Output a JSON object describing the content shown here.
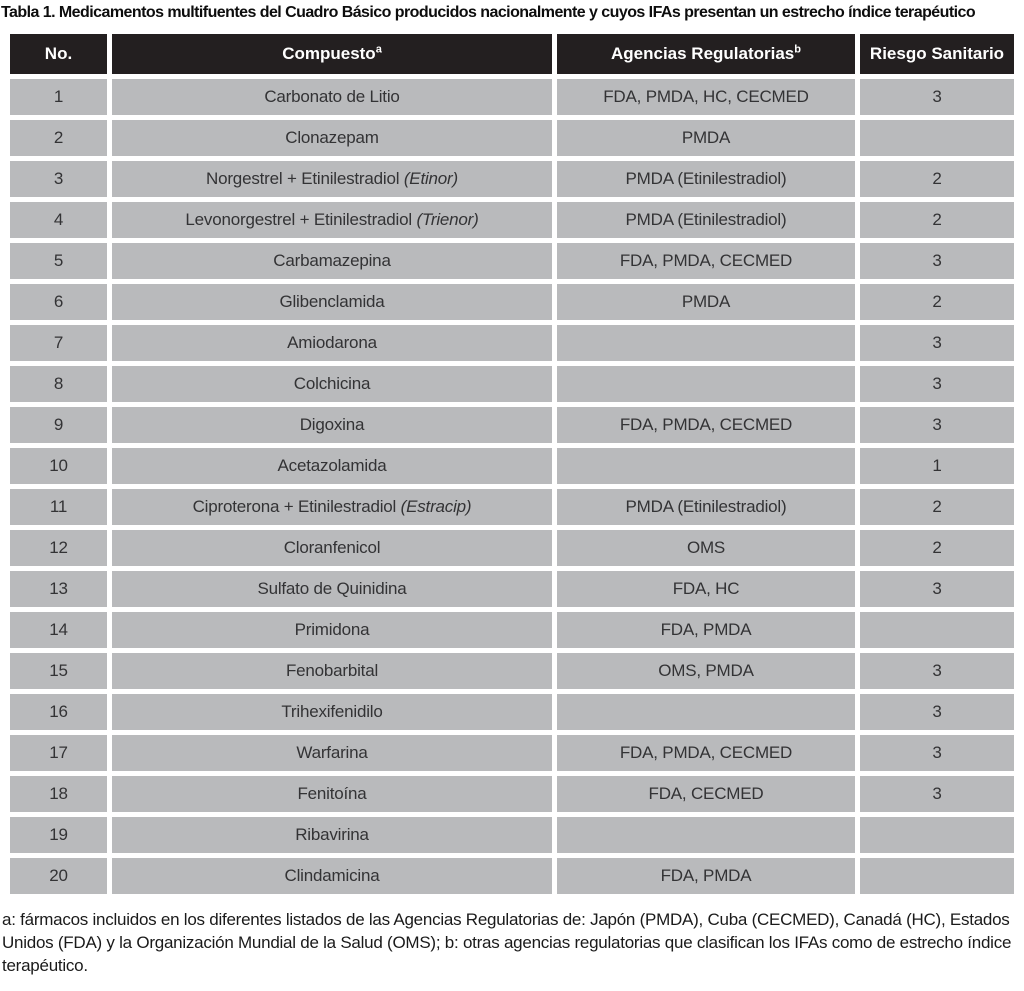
{
  "title": "Tabla 1. Medicamentos multifuentes del Cuadro Básico producidos nacionalmente y cuyos IFAs presentan un estrecho índice terapéutico",
  "table": {
    "headers": {
      "no": "No.",
      "compuesto": "Compuesto",
      "compuesto_sup": "a",
      "agencias": "Agencias Regulatorias",
      "agencias_sup": "b",
      "riesgo": "Riesgo Sanitario"
    },
    "rows": [
      {
        "no": "1",
        "compuesto": "Carbonato de Litio",
        "compuesto_italic": "",
        "agencias": "FDA, PMDA, HC, CECMED",
        "riesgo": "3"
      },
      {
        "no": "2",
        "compuesto": "Clonazepam",
        "compuesto_italic": "",
        "agencias": "PMDA",
        "riesgo": ""
      },
      {
        "no": "3",
        "compuesto": "Norgestrel + Etinilestradiol ",
        "compuesto_italic": "(Etinor)",
        "agencias": "PMDA (Etinilestradiol)",
        "riesgo": "2"
      },
      {
        "no": "4",
        "compuesto": "Levonorgestrel + Etinilestradiol ",
        "compuesto_italic": "(Trienor)",
        "agencias": "PMDA (Etinilestradiol)",
        "riesgo": "2"
      },
      {
        "no": "5",
        "compuesto": "Carbamazepina",
        "compuesto_italic": "",
        "agencias": "FDA, PMDA, CECMED",
        "riesgo": "3"
      },
      {
        "no": "6",
        "compuesto": "Glibenclamida",
        "compuesto_italic": "",
        "agencias": "PMDA",
        "riesgo": "2"
      },
      {
        "no": "7",
        "compuesto": "Amiodarona",
        "compuesto_italic": "",
        "agencias": "",
        "riesgo": "3"
      },
      {
        "no": "8",
        "compuesto": "Colchicina",
        "compuesto_italic": "",
        "agencias": "",
        "riesgo": "3"
      },
      {
        "no": "9",
        "compuesto": "Digoxina",
        "compuesto_italic": "",
        "agencias": "FDA, PMDA, CECMED",
        "riesgo": "3"
      },
      {
        "no": "10",
        "compuesto": "Acetazolamida",
        "compuesto_italic": "",
        "agencias": "",
        "riesgo": "1"
      },
      {
        "no": "11",
        "compuesto": "Ciproterona + Etinilestradiol ",
        "compuesto_italic": "(Estracip)",
        "agencias": "PMDA (Etinilestradiol)",
        "riesgo": "2"
      },
      {
        "no": "12",
        "compuesto": "Cloranfenicol",
        "compuesto_italic": "",
        "agencias": "OMS",
        "riesgo": "2"
      },
      {
        "no": "13",
        "compuesto": "Sulfato de Quinidina",
        "compuesto_italic": "",
        "agencias": "FDA, HC",
        "riesgo": "3"
      },
      {
        "no": "14",
        "compuesto": "Primidona",
        "compuesto_italic": "",
        "agencias": "FDA, PMDA",
        "riesgo": ""
      },
      {
        "no": "15",
        "compuesto": "Fenobarbital",
        "compuesto_italic": "",
        "agencias": "OMS, PMDA",
        "riesgo": "3"
      },
      {
        "no": "16",
        "compuesto": "Trihexifenidilo",
        "compuesto_italic": "",
        "agencias": "",
        "riesgo": "3"
      },
      {
        "no": "17",
        "compuesto": "Warfarina",
        "compuesto_italic": "",
        "agencias": "FDA, PMDA, CECMED",
        "riesgo": "3"
      },
      {
        "no": "18",
        "compuesto": "Fenitoína",
        "compuesto_italic": "",
        "agencias": "FDA, CECMED",
        "riesgo": "3"
      },
      {
        "no": "19",
        "compuesto": "Ribavirina",
        "compuesto_italic": "",
        "agencias": "",
        "riesgo": ""
      },
      {
        "no": "20",
        "compuesto": "Clindamicina",
        "compuesto_italic": "",
        "agencias": "FDA, PMDA",
        "riesgo": ""
      }
    ]
  },
  "footnote": "a: fármacos incluidos en los diferentes listados de las Agencias Regulatorias de: Japón (PMDA), Cuba (CECMED), Canadá (HC), Estados Unidos (FDA) y la Organización Mundial de la Salud (OMS); b: otras agencias regulatorias que clasifican los IFAs como de estrecho índice terapéutico.",
  "colors": {
    "header_bg": "#231f20",
    "header_text": "#ffffff",
    "row_bg": "#b9babc",
    "cell_text": "#333335",
    "title_text": "#0d0d0d",
    "page_bg": "#ffffff"
  }
}
